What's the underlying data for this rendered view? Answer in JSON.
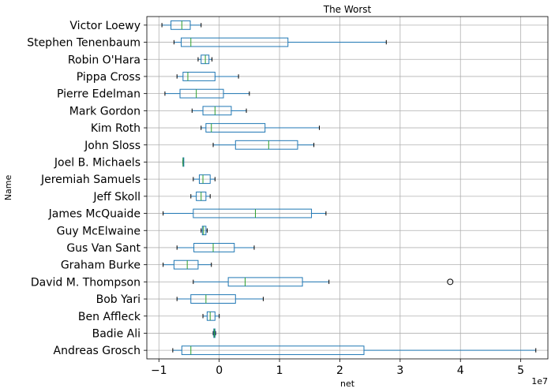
{
  "chart_data": {
    "type": "boxplot",
    "title": "The Worst",
    "xlabel": "net",
    "ylabel": "Name",
    "x_offset_label": "1e7",
    "xlim": [
      -1.2,
      5.45
    ],
    "xticks": [
      -1,
      0,
      1,
      2,
      3,
      4,
      5
    ],
    "grid": true,
    "colors": {
      "box": "#1f77b4",
      "median": "#2ca02c",
      "whisker": "#1f77b4",
      "grid": "#b0b0b0",
      "frame": "#000000"
    },
    "categories": [
      "Victor Loewy",
      "Stephen Tenenbaum",
      "Robin O'Hara",
      "Pippa Cross",
      "Pierre Edelman",
      "Mark Gordon",
      "Kim Roth",
      "John Sloss",
      "Joel B. Michaels",
      "Jeremiah Samuels",
      "Jeff Skoll",
      "James McQuaide",
      "Guy McElwaine",
      "Gus Van Sant",
      "Graham Burke",
      "David M. Thompson",
      "Bob Yari",
      "Ben Affleck",
      "Badie Ali",
      "Andreas Grosch"
    ],
    "boxes": [
      {
        "whislo": -0.95,
        "q1": -0.8,
        "med": -0.62,
        "q3": -0.48,
        "whishi": -0.3,
        "fliers": []
      },
      {
        "whislo": -0.75,
        "q1": -0.63,
        "med": -0.47,
        "q3": 1.14,
        "whishi": 2.77,
        "fliers": []
      },
      {
        "whislo": -0.35,
        "q1": -0.3,
        "med": -0.23,
        "q3": -0.17,
        "whishi": -0.12,
        "fliers": []
      },
      {
        "whislo": -0.7,
        "q1": -0.6,
        "med": -0.52,
        "q3": -0.07,
        "whishi": 0.32,
        "fliers": []
      },
      {
        "whislo": -0.9,
        "q1": -0.65,
        "med": -0.38,
        "q3": 0.07,
        "whishi": 0.5,
        "fliers": []
      },
      {
        "whislo": -0.45,
        "q1": -0.27,
        "med": -0.07,
        "q3": 0.2,
        "whishi": 0.45,
        "fliers": []
      },
      {
        "whislo": -0.3,
        "q1": -0.22,
        "med": -0.13,
        "q3": 0.76,
        "whishi": 1.66,
        "fliers": []
      },
      {
        "whislo": -0.1,
        "q1": 0.27,
        "med": 0.82,
        "q3": 1.3,
        "whishi": 1.57,
        "fliers": []
      },
      {
        "whislo": -0.6,
        "q1": -0.6,
        "med": -0.6,
        "q3": -0.6,
        "whishi": -0.6,
        "fliers": []
      },
      {
        "whislo": -0.43,
        "q1": -0.33,
        "med": -0.27,
        "q3": -0.15,
        "whishi": -0.07,
        "fliers": []
      },
      {
        "whislo": -0.47,
        "q1": -0.38,
        "med": -0.3,
        "q3": -0.22,
        "whishi": -0.15,
        "fliers": []
      },
      {
        "whislo": -0.93,
        "q1": -0.43,
        "med": 0.6,
        "q3": 1.53,
        "whishi": 1.77,
        "fliers": []
      },
      {
        "whislo": -0.3,
        "q1": -0.28,
        "med": -0.26,
        "q3": -0.22,
        "whishi": -0.2,
        "fliers": []
      },
      {
        "whislo": -0.7,
        "q1": -0.42,
        "med": -0.1,
        "q3": 0.25,
        "whishi": 0.58,
        "fliers": []
      },
      {
        "whislo": -0.93,
        "q1": -0.75,
        "med": -0.53,
        "q3": -0.35,
        "whishi": -0.13,
        "fliers": []
      },
      {
        "whislo": -0.43,
        "q1": 0.15,
        "med": 0.43,
        "q3": 1.38,
        "whishi": 1.82,
        "fliers": [
          3.83
        ]
      },
      {
        "whislo": -0.7,
        "q1": -0.47,
        "med": -0.22,
        "q3": 0.27,
        "whishi": 0.73,
        "fliers": []
      },
      {
        "whislo": -0.27,
        "q1": -0.2,
        "med": -0.15,
        "q3": -0.07,
        "whishi": 0.0,
        "fliers": []
      },
      {
        "whislo": -0.1,
        "q1": -0.09,
        "med": -0.08,
        "q3": -0.07,
        "whishi": -0.06,
        "fliers": []
      },
      {
        "whislo": -0.77,
        "q1": -0.62,
        "med": -0.47,
        "q3": 2.4,
        "whishi": 5.25,
        "fliers": []
      }
    ]
  }
}
